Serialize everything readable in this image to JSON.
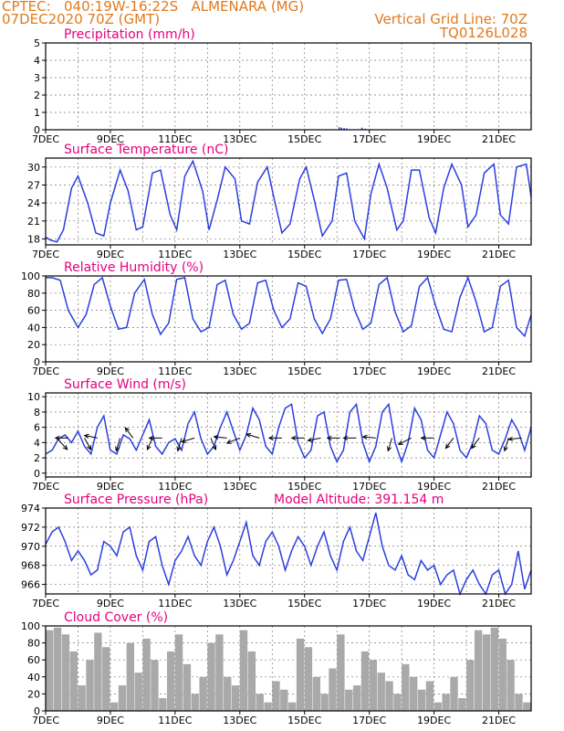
{
  "header": {
    "line1_left": "CPTEC:   040:19W-16:22S   ALMENARA (MG)",
    "line2_left": "07DEC2020 70Z (GMT)",
    "line1_right": "Vertical Grid Line: 70Z",
    "line2_right": "TQ0126L028"
  },
  "colors": {
    "header": "#e07a1e",
    "panel_title": "#e6007e",
    "series": "#2b3fe0",
    "cloud": "#a9a9a9",
    "wind_arrow": "#000000"
  },
  "chart_data": [
    {
      "type": "bar",
      "title": "Precipitation (mm/h)",
      "ylim": [
        0,
        5
      ],
      "yticks": [
        0,
        1,
        2,
        3,
        4,
        5
      ],
      "xticks": [
        "7DEC",
        "9DEC",
        "11DEC",
        "13DEC",
        "15DEC",
        "17DEC",
        "19DEC",
        "21DEC"
      ],
      "x_day_range": [
        7,
        22
      ],
      "grid": true,
      "series": [
        {
          "x": [
            16.05,
            16.12,
            16.2,
            16.28,
            16.75,
            16.85
          ],
          "values": [
            0.15,
            0.12,
            0.1,
            0.08,
            0.12,
            0.06
          ]
        }
      ]
    },
    {
      "type": "line",
      "title": "Surface Temperature (nC)",
      "ylim": [
        17,
        31.5
      ],
      "yticks": [
        18,
        21,
        24,
        27,
        30
      ],
      "xticks": [
        "7DEC",
        "9DEC",
        "11DEC",
        "13DEC",
        "15DEC",
        "17DEC",
        "19DEC",
        "21DEC"
      ],
      "x_day_range": [
        7,
        22
      ],
      "grid": true,
      "series": [
        {
          "x": [
            7.0,
            7.15,
            7.35,
            7.55,
            7.8,
            8.0,
            8.3,
            8.55,
            8.8,
            9.0,
            9.3,
            9.55,
            9.8,
            10.0,
            10.3,
            10.55,
            10.85,
            11.05,
            11.3,
            11.55,
            11.85,
            12.05,
            12.3,
            12.55,
            12.85,
            13.05,
            13.3,
            13.55,
            13.85,
            14.05,
            14.3,
            14.55,
            14.85,
            15.05,
            15.3,
            15.55,
            15.85,
            16.05,
            16.3,
            16.55,
            16.85,
            17.05,
            17.3,
            17.55,
            17.85,
            18.05,
            18.3,
            18.55,
            18.85,
            19.05,
            19.3,
            19.55,
            19.85,
            20.05,
            20.3,
            20.55,
            20.85,
            21.05,
            21.3,
            21.55,
            21.85,
            22.0
          ],
          "values": [
            18.3,
            17.8,
            17.5,
            19.5,
            26.5,
            28.5,
            24.0,
            19.0,
            18.5,
            24.0,
            29.5,
            26.0,
            19.5,
            20.0,
            29.0,
            29.5,
            22.0,
            19.5,
            28.5,
            31.0,
            26.0,
            19.5,
            24.5,
            30.0,
            28.0,
            21.0,
            20.5,
            27.5,
            30.0,
            25.0,
            19.0,
            20.5,
            28.0,
            30.0,
            24.5,
            18.5,
            21.0,
            28.5,
            29.0,
            21.0,
            18.0,
            25.5,
            30.5,
            26.5,
            19.5,
            21.0,
            29.5,
            29.5,
            21.5,
            19.0,
            26.5,
            30.5,
            27.0,
            20.0,
            22.0,
            29.0,
            30.5,
            22.0,
            20.5,
            30.0,
            30.5,
            25.0
          ]
        }
      ]
    },
    {
      "type": "line",
      "title": "Relative Humidity (%)",
      "ylim": [
        0,
        100
      ],
      "yticks": [
        0,
        20,
        40,
        60,
        80,
        100
      ],
      "xticks": [
        "7DEC",
        "9DEC",
        "11DEC",
        "13DEC",
        "15DEC",
        "17DEC",
        "19DEC",
        "21DEC"
      ],
      "x_day_range": [
        7,
        22
      ],
      "grid": true,
      "series": [
        {
          "x": [
            7.0,
            7.2,
            7.45,
            7.7,
            8.0,
            8.25,
            8.5,
            8.75,
            9.0,
            9.25,
            9.5,
            9.75,
            10.05,
            10.3,
            10.55,
            10.8,
            11.05,
            11.3,
            11.55,
            11.8,
            12.05,
            12.3,
            12.55,
            12.8,
            13.05,
            13.3,
            13.55,
            13.8,
            14.05,
            14.3,
            14.55,
            14.8,
            15.05,
            15.3,
            15.55,
            15.8,
            16.05,
            16.3,
            16.55,
            16.8,
            17.05,
            17.3,
            17.55,
            17.8,
            18.05,
            18.3,
            18.55,
            18.8,
            19.05,
            19.3,
            19.55,
            19.8,
            20.05,
            20.3,
            20.55,
            20.8,
            21.05,
            21.3,
            21.55,
            21.8,
            22.0
          ],
          "values": [
            98,
            98,
            95,
            60,
            40,
            55,
            90,
            98,
            65,
            38,
            40,
            80,
            96,
            55,
            32,
            45,
            96,
            98,
            50,
            35,
            40,
            90,
            95,
            55,
            38,
            45,
            92,
            95,
            60,
            40,
            50,
            92,
            88,
            50,
            33,
            50,
            95,
            96,
            60,
            38,
            45,
            90,
            98,
            58,
            35,
            42,
            88,
            98,
            65,
            38,
            35,
            75,
            98,
            70,
            35,
            40,
            88,
            95,
            40,
            30,
            55
          ]
        }
      ]
    },
    {
      "type": "line",
      "title": "Surface Wind (m/s)",
      "ylim": [
        -0.5,
        10.5
      ],
      "yticks": [
        0,
        2,
        4,
        6,
        8,
        10
      ],
      "xticks": [
        "7DEC",
        "9DEC",
        "11DEC",
        "13DEC",
        "15DEC",
        "17DEC",
        "19DEC",
        "21DEC"
      ],
      "x_day_range": [
        7,
        22
      ],
      "grid": true,
      "series": [
        {
          "x": [
            7.0,
            7.2,
            7.4,
            7.6,
            7.8,
            8.0,
            8.2,
            8.4,
            8.6,
            8.8,
            9.0,
            9.2,
            9.4,
            9.6,
            9.8,
            10.0,
            10.2,
            10.4,
            10.6,
            10.8,
            11.0,
            11.2,
            11.4,
            11.6,
            11.8,
            12.0,
            12.2,
            12.4,
            12.6,
            12.8,
            13.0,
            13.2,
            13.4,
            13.6,
            13.8,
            14.0,
            14.2,
            14.4,
            14.6,
            14.8,
            15.0,
            15.2,
            15.4,
            15.6,
            15.8,
            16.0,
            16.2,
            16.4,
            16.6,
            16.8,
            17.0,
            17.2,
            17.4,
            17.6,
            17.8,
            18.0,
            18.2,
            18.4,
            18.6,
            18.8,
            19.0,
            19.2,
            19.4,
            19.6,
            19.8,
            20.0,
            20.2,
            20.4,
            20.6,
            20.8,
            21.0,
            21.2,
            21.4,
            21.6,
            21.8,
            22.0
          ],
          "values": [
            2.5,
            3.0,
            4.5,
            5.0,
            4.0,
            5.5,
            3.5,
            2.5,
            6.0,
            7.5,
            3.0,
            2.5,
            5.0,
            4.5,
            3.0,
            5.0,
            7.0,
            3.5,
            2.5,
            4.0,
            4.5,
            3.0,
            6.5,
            8.0,
            4.5,
            2.5,
            3.5,
            6.0,
            8.0,
            5.5,
            3.0,
            5.0,
            8.5,
            7.0,
            3.5,
            2.5,
            6.0,
            8.5,
            9.0,
            4.0,
            2.0,
            3.0,
            7.5,
            8.0,
            3.5,
            1.5,
            3.0,
            8.0,
            9.0,
            4.0,
            1.5,
            3.5,
            8.0,
            9.0,
            4.0,
            1.5,
            4.0,
            8.5,
            7.0,
            3.0,
            2.0,
            5.0,
            8.0,
            6.5,
            3.0,
            2.0,
            4.0,
            7.5,
            6.5,
            3.0,
            2.5,
            4.5,
            7.0,
            5.5,
            3.0,
            6.0
          ]
        }
      ],
      "arrows": [
        {
          "day": 7.35,
          "u": 0.8,
          "v": -0.9
        },
        {
          "day": 7.7,
          "u": -1.0,
          "v": 0.0
        },
        {
          "day": 8.2,
          "u": 0.5,
          "v": -0.9
        },
        {
          "day": 8.6,
          "u": -1.0,
          "v": 0.2
        },
        {
          "day": 9.3,
          "u": -0.3,
          "v": -1.0
        },
        {
          "day": 9.7,
          "u": -0.6,
          "v": 0.8
        },
        {
          "day": 10.3,
          "u": -0.4,
          "v": -0.9
        },
        {
          "day": 10.6,
          "u": -1.0,
          "v": 0.0
        },
        {
          "day": 11.2,
          "u": -0.3,
          "v": -1.0
        },
        {
          "day": 11.6,
          "u": -1.0,
          "v": -0.3
        },
        {
          "day": 12.1,
          "u": 0.4,
          "v": -0.9
        },
        {
          "day": 12.6,
          "u": -1.0,
          "v": 0.1
        },
        {
          "day": 13.0,
          "u": -1.0,
          "v": -0.4
        },
        {
          "day": 13.6,
          "u": -1.0,
          "v": 0.3
        },
        {
          "day": 14.3,
          "u": -1.0,
          "v": 0.0
        },
        {
          "day": 15.0,
          "u": -1.0,
          "v": 0.0
        },
        {
          "day": 15.5,
          "u": -1.0,
          "v": -0.2
        },
        {
          "day": 16.1,
          "u": -1.0,
          "v": 0.0
        },
        {
          "day": 16.6,
          "u": -1.0,
          "v": 0.0
        },
        {
          "day": 17.2,
          "u": -1.0,
          "v": 0.1
        },
        {
          "day": 17.7,
          "u": -0.3,
          "v": -1.0
        },
        {
          "day": 18.3,
          "u": -1.0,
          "v": -0.5
        },
        {
          "day": 19.0,
          "u": -1.0,
          "v": 0.0
        },
        {
          "day": 19.6,
          "u": -0.6,
          "v": -0.8
        },
        {
          "day": 20.4,
          "u": -0.6,
          "v": -0.8
        },
        {
          "day": 21.3,
          "u": -0.3,
          "v": -1.0
        },
        {
          "day": 21.7,
          "u": -1.0,
          "v": -0.1
        }
      ]
    },
    {
      "type": "line",
      "title": "Surface Pressure (hPa)",
      "annotation": "Model Altitude: 391.154 m",
      "ylim": [
        965,
        974
      ],
      "yticks": [
        966,
        968,
        970,
        972,
        974
      ],
      "xticks": [
        "7DEC",
        "9DEC",
        "11DEC",
        "13DEC",
        "15DEC",
        "17DEC",
        "19DEC",
        "21DEC"
      ],
      "x_day_range": [
        7,
        22
      ],
      "grid": true,
      "series": [
        {
          "x": [
            7.0,
            7.2,
            7.4,
            7.6,
            7.8,
            8.0,
            8.2,
            8.4,
            8.6,
            8.8,
            9.0,
            9.2,
            9.4,
            9.6,
            9.8,
            10.0,
            10.2,
            10.4,
            10.6,
            10.8,
            11.0,
            11.2,
            11.4,
            11.6,
            11.8,
            12.0,
            12.2,
            12.4,
            12.6,
            12.8,
            13.0,
            13.2,
            13.4,
            13.6,
            13.8,
            14.0,
            14.2,
            14.4,
            14.6,
            14.8,
            15.0,
            15.2,
            15.4,
            15.6,
            15.8,
            16.0,
            16.2,
            16.4,
            16.6,
            16.8,
            17.0,
            17.2,
            17.4,
            17.6,
            17.8,
            18.0,
            18.2,
            18.4,
            18.6,
            18.8,
            19.0,
            19.2,
            19.4,
            19.6,
            19.8,
            20.0,
            20.2,
            20.4,
            20.6,
            20.8,
            21.0,
            21.2,
            21.4,
            21.6,
            21.8,
            22.0
          ],
          "values": [
            970.2,
            971.5,
            972.0,
            970.5,
            968.5,
            969.5,
            968.5,
            967.0,
            967.5,
            970.5,
            970.0,
            969.0,
            971.5,
            972.0,
            969.0,
            967.5,
            970.5,
            971.0,
            968.0,
            966.0,
            968.5,
            969.5,
            971.0,
            969.0,
            968.0,
            970.5,
            972.0,
            970.0,
            967.0,
            968.5,
            970.5,
            972.5,
            969.0,
            968.0,
            970.5,
            971.5,
            970.0,
            967.5,
            969.5,
            971.0,
            970.0,
            968.0,
            970.0,
            971.5,
            969.0,
            967.5,
            970.5,
            972.0,
            969.5,
            968.5,
            971.0,
            973.5,
            970.0,
            968.0,
            967.5,
            969.0,
            967.0,
            966.5,
            968.5,
            967.5,
            968.0,
            966.0,
            967.0,
            967.5,
            965.0,
            966.5,
            967.5,
            966.0,
            965.0,
            967.0,
            967.5,
            965.0,
            966.0,
            969.5,
            965.5,
            967.5
          ]
        }
      ]
    },
    {
      "type": "bar",
      "title": "Cloud Cover (%)",
      "ylim": [
        0,
        100
      ],
      "yticks": [
        0,
        20,
        40,
        60,
        80,
        100
      ],
      "xticks": [
        "7DEC",
        "9DEC",
        "11DEC",
        "13DEC",
        "15DEC",
        "17DEC",
        "19DEC",
        "21DEC"
      ],
      "x_day_range": [
        7,
        22
      ],
      "grid": true,
      "series": [
        {
          "x": [
            7.0,
            7.25,
            7.5,
            7.75,
            8.0,
            8.25,
            8.5,
            8.75,
            9.0,
            9.25,
            9.5,
            9.75,
            10.0,
            10.25,
            10.5,
            10.75,
            11.0,
            11.25,
            11.5,
            11.75,
            12.0,
            12.25,
            12.5,
            12.75,
            13.0,
            13.25,
            13.5,
            13.75,
            14.0,
            14.25,
            14.5,
            14.75,
            15.0,
            15.25,
            15.5,
            15.75,
            16.0,
            16.25,
            16.5,
            16.75,
            17.0,
            17.25,
            17.5,
            17.75,
            18.0,
            18.25,
            18.5,
            18.75,
            19.0,
            19.25,
            19.5,
            19.75,
            20.0,
            20.25,
            20.5,
            20.75,
            21.0,
            21.25,
            21.5,
            21.75
          ],
          "values": [
            95,
            98,
            90,
            70,
            30,
            60,
            92,
            75,
            10,
            30,
            80,
            45,
            85,
            60,
            15,
            70,
            90,
            55,
            20,
            40,
            80,
            90,
            40,
            30,
            95,
            70,
            20,
            10,
            35,
            25,
            10,
            85,
            75,
            40,
            20,
            50,
            90,
            25,
            30,
            70,
            60,
            45,
            35,
            20,
            55,
            40,
            25,
            35,
            10,
            20,
            40,
            15,
            60,
            95,
            90,
            98,
            85,
            60,
            20,
            10
          ]
        }
      ]
    }
  ]
}
